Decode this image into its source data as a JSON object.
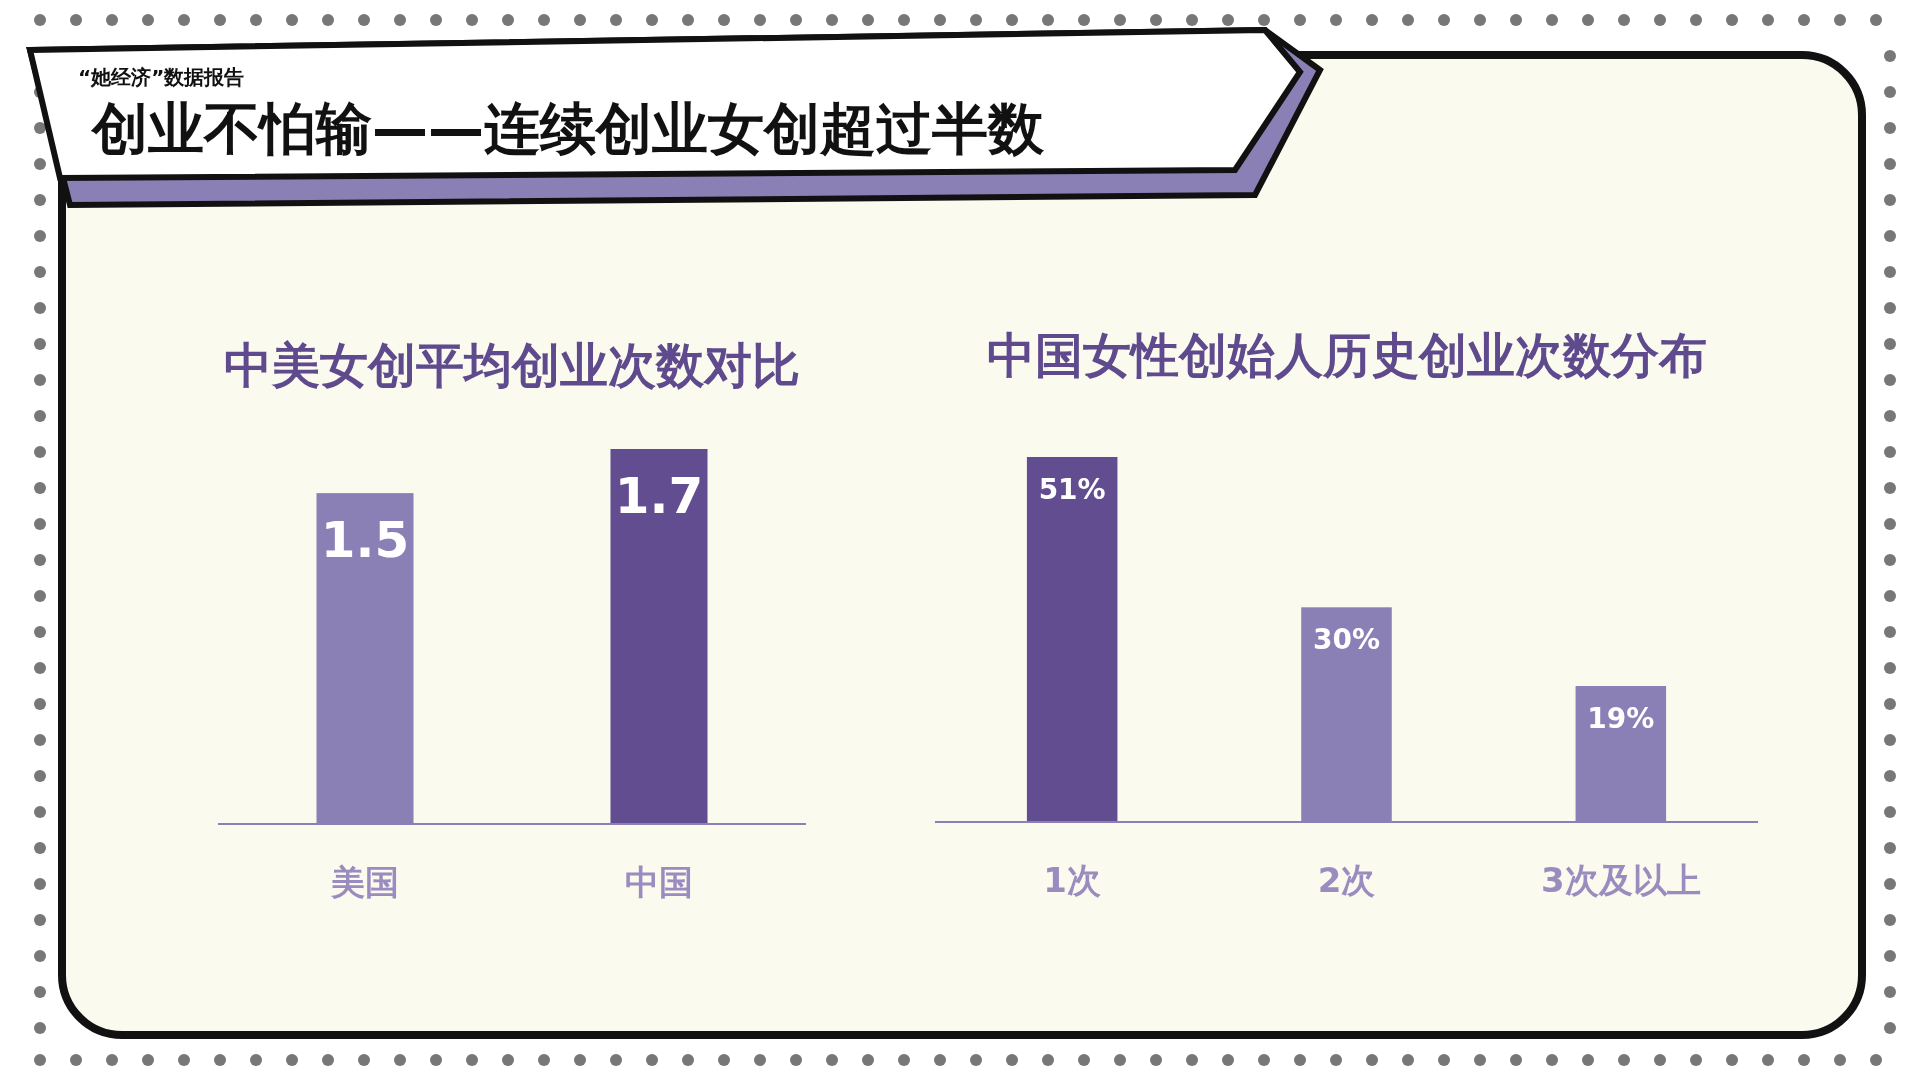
{
  "chart_data": [
    {
      "type": "other",
      "title": "创业不怕输——连续创业女创超过半数",
      "subtitle": "“她经济”数据报告"
    },
    {
      "type": "bar",
      "title": "中美女创平均创业次数对比",
      "categories": [
        "美国",
        "中国"
      ],
      "values": [
        1.5,
        1.7
      ],
      "colors": [
        "#8a80b5",
        "#624d91"
      ],
      "data_labels": true
    },
    {
      "type": "bar",
      "title": "中国女性创始人历史创业次数分布",
      "categories": [
        "1次",
        "2次",
        "3次及以上"
      ],
      "values": [
        51,
        30,
        19
      ],
      "colors": [
        "#624d91",
        "#8a80b5",
        "#8a80b5"
      ],
      "value_labels": [
        "51%",
        "30%",
        "19%"
      ]
    }
  ]
}
